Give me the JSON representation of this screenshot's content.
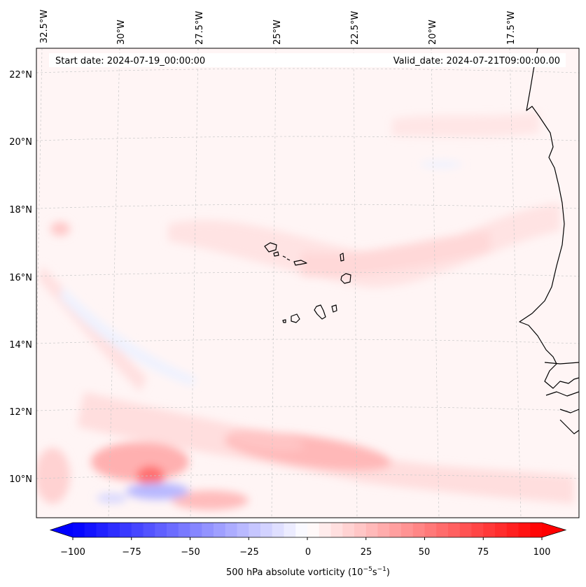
{
  "header": {
    "start_date": "Start date: 2024-07-19_00:00:00",
    "valid_date": "Valid_date: 2024-07-21T09:00:00.00"
  },
  "axes": {
    "lon_labels": [
      "32.5°W",
      "30°W",
      "27.5°W",
      "25°W",
      "22.5°W",
      "20°W",
      "17.5°W"
    ],
    "lat_labels": [
      "22°N",
      "20°N",
      "18°N",
      "16°N",
      "14°N",
      "12°N",
      "10°N"
    ]
  },
  "colorbar": {
    "tick_labels": [
      "−100",
      "−75",
      "−50",
      "−25",
      "0",
      "25",
      "50",
      "75",
      "100"
    ],
    "label_main": "500 hPa absolute vorticity (10",
    "label_exp1": "−5",
    "label_mid": "s",
    "label_exp2": "−1",
    "label_end": ")",
    "min": -100,
    "max": 100,
    "negative_color": "#0000ff",
    "positive_color": "#ff0000",
    "levels": 40
  },
  "map": {
    "ocean_background": "#fff5f5",
    "coastline_color": "#000000"
  }
}
